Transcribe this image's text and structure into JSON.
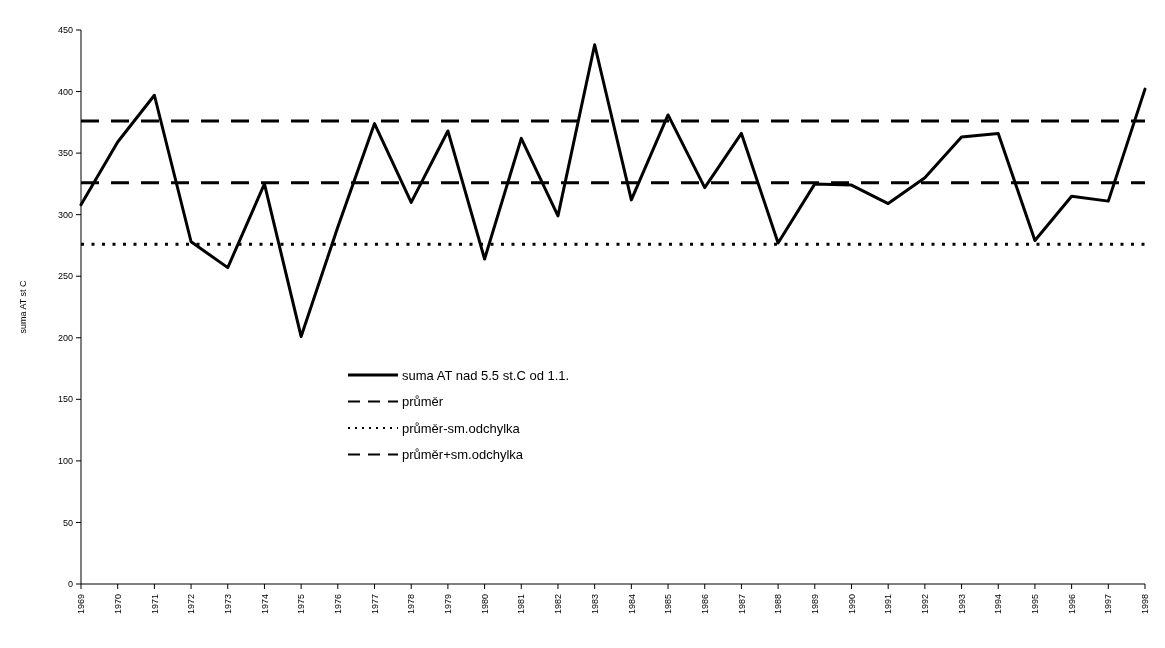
{
  "chart_data": {
    "type": "line",
    "ylabel": "suma AT st C",
    "categories": [
      "1969",
      "1970",
      "1971",
      "1972",
      "1973",
      "1974",
      "1975",
      "1976",
      "1977",
      "1978",
      "1979",
      "1980",
      "1981",
      "1982",
      "1983",
      "1984",
      "1985",
      "1986",
      "1987",
      "1988",
      "1989",
      "1990",
      "1991",
      "1992",
      "1993",
      "1994",
      "1995",
      "1996",
      "1997",
      "1998"
    ],
    "series": [
      {
        "name": "suma AT nad 5.5 st.C od 1.1.",
        "color": "#000000",
        "values": [
          308,
          359,
          397,
          278,
          257,
          325,
          201,
          290,
          374,
          310,
          368,
          264,
          362,
          299,
          438,
          312,
          381,
          322,
          366,
          277,
          325,
          324,
          309,
          330,
          363,
          366,
          279,
          315,
          311,
          402
        ]
      }
    ],
    "ylim": [
      0,
      450
    ],
    "yticks": [
      0,
      50,
      100,
      150,
      200,
      250,
      300,
      350,
      400,
      450
    ],
    "ref_lines": [
      {
        "axis": "y",
        "value": 326,
        "label": "průměr",
        "color": "#000000",
        "line_style": "dashed"
      },
      {
        "axis": "y",
        "value": 276,
        "label": "průměr-sm.odchylka",
        "color": "#000000",
        "line_style": "dotted"
      },
      {
        "axis": "y",
        "value": 376,
        "label": "průměr+sm.odchylka",
        "color": "#000000",
        "line_style": "dashed"
      }
    ],
    "legend": "center",
    "grid": false,
    "marker": "none",
    "line_style": "solid"
  }
}
